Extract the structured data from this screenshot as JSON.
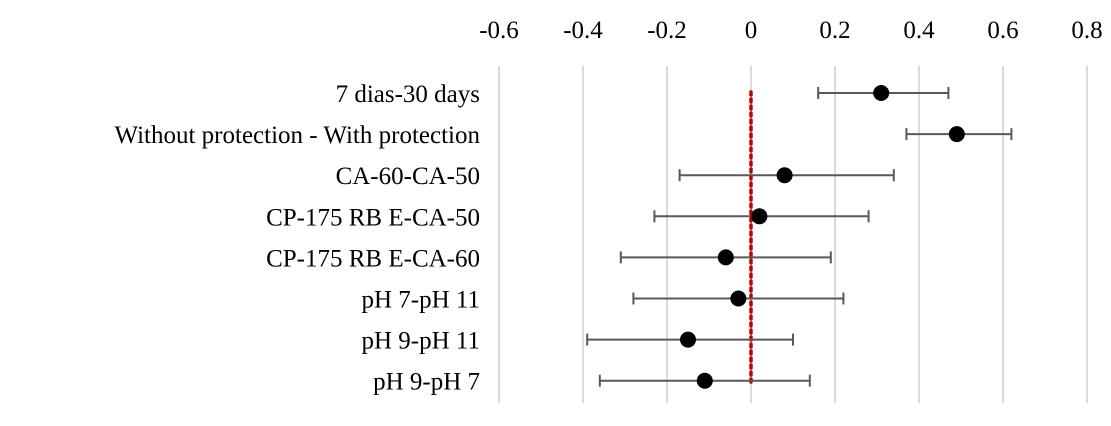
{
  "chart_data": {
    "type": "scatter",
    "xlim": [
      -0.6,
      0.8
    ],
    "x_ticks": [
      -0.6,
      -0.4,
      -0.2,
      0,
      0.2,
      0.4,
      0.6,
      0.8
    ],
    "x_tick_labels": [
      "-0.6",
      "-0.4",
      "-0.2",
      "0",
      "0.2",
      "0.4",
      "0.6",
      "0.8"
    ],
    "x_axis_position": "top",
    "grid": true,
    "reference_line": {
      "x": 0,
      "style": "dotted",
      "color": "#c00000"
    },
    "categories": [
      "7 dias-30 days",
      "Without protection - With protection",
      "CA-60-CA-50",
      "CP-175 RB E-CA-50",
      "CP-175 RB E-CA-60",
      "pH 7-pH 11",
      "pH 9-pH 11",
      "pH 9-pH 7"
    ],
    "points": [
      {
        "estimate": 0.31,
        "lower": 0.16,
        "upper": 0.47
      },
      {
        "estimate": 0.49,
        "lower": 0.37,
        "upper": 0.62
      },
      {
        "estimate": 0.08,
        "lower": -0.17,
        "upper": 0.34
      },
      {
        "estimate": 0.02,
        "lower": -0.23,
        "upper": 0.28
      },
      {
        "estimate": -0.06,
        "lower": -0.31,
        "upper": 0.19
      },
      {
        "estimate": -0.03,
        "lower": -0.28,
        "upper": 0.22
      },
      {
        "estimate": -0.15,
        "lower": -0.39,
        "upper": 0.1
      },
      {
        "estimate": -0.11,
        "lower": -0.36,
        "upper": 0.14
      }
    ],
    "colors": {
      "point": "#000000",
      "error_bar": "#595959",
      "grid": "#d9d9d9",
      "reference_line": "#c00000"
    }
  }
}
